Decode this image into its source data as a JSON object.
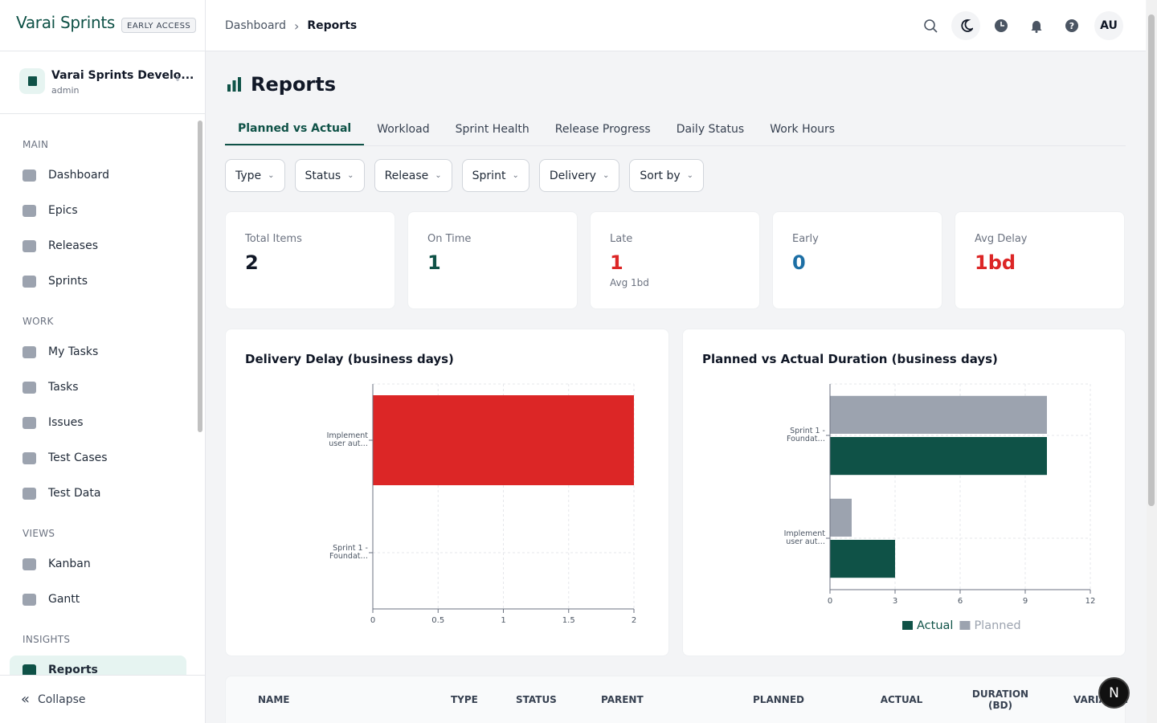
{
  "app": {
    "brand": "Varai Sprints",
    "badge": "EARLY ACCESS",
    "workspace": "Varai Sprints Develo...",
    "role": "admin",
    "collapse": "Collapse",
    "dev_badge": "N"
  },
  "nav": [
    {
      "section": "MAIN",
      "items": [
        "Dashboard",
        "Epics",
        "Releases",
        "Sprints"
      ]
    },
    {
      "section": "WORK",
      "items": [
        "My Tasks",
        "Tasks",
        "Issues",
        "Test Cases",
        "Test Data"
      ]
    },
    {
      "section": "VIEWS",
      "items": [
        "Kanban",
        "Gantt"
      ]
    },
    {
      "section": "INSIGHTS",
      "items": [
        "Reports"
      ]
    }
  ],
  "active_nav": "Reports",
  "breadcrumb": [
    "Dashboard",
    "Reports"
  ],
  "avatar": "AU",
  "page_title": "Reports",
  "tabs": [
    "Planned vs Actual",
    "Workload",
    "Sprint Health",
    "Release Progress",
    "Daily Status",
    "Work Hours"
  ],
  "filters": [
    "Type",
    "Status",
    "Release",
    "Sprint",
    "Delivery",
    "Sort by"
  ],
  "stats": [
    {
      "label": "Total Items",
      "value": 2,
      "color": "#111827"
    },
    {
      "label": "On Time",
      "value": 1,
      "color": "#0f5247"
    },
    {
      "label": "Late",
      "value": 1,
      "note": "Avg 1bd",
      "color": "#dc2626"
    },
    {
      "label": "Early",
      "value": 0,
      "color": "#1d6fa5"
    },
    {
      "label": "Avg Delay",
      "value": "1bd",
      "color": "#dc2626"
    }
  ],
  "chart_data": [
    {
      "type": "hbar",
      "title": "Delivery Delay (business days)",
      "categories": [
        "Implement user aut…",
        "Sprint 1 - Foundat…"
      ],
      "series": [
        {
          "values": [
            2,
            0
          ],
          "color": "#dc2626"
        }
      ],
      "xlim": [
        0,
        2
      ],
      "xticks": [
        0,
        0.5,
        1,
        1.5,
        2
      ],
      "grid": true
    },
    {
      "type": "hbar",
      "title": "Planned vs Actual Duration (business days)",
      "categories": [
        "Sprint 1 - Foundat…",
        "Implement user aut…"
      ],
      "series": [
        {
          "name": "Planned",
          "color": "#9ca3af",
          "values": [
            10,
            1
          ]
        },
        {
          "name": "Actual",
          "color": "#0f5247",
          "values": [
            10,
            3
          ]
        }
      ],
      "legend_order": [
        1,
        0
      ],
      "xlim": [
        0,
        12
      ],
      "xticks": [
        0,
        3,
        6,
        9,
        12
      ],
      "grid": true,
      "legend": "bottom"
    }
  ],
  "table": {
    "columns": [
      "NAME",
      "TYPE",
      "STATUS",
      "PARENT",
      "PLANNED",
      "ACTUAL",
      "DURATION (BD)",
      "VARIANCE"
    ]
  }
}
